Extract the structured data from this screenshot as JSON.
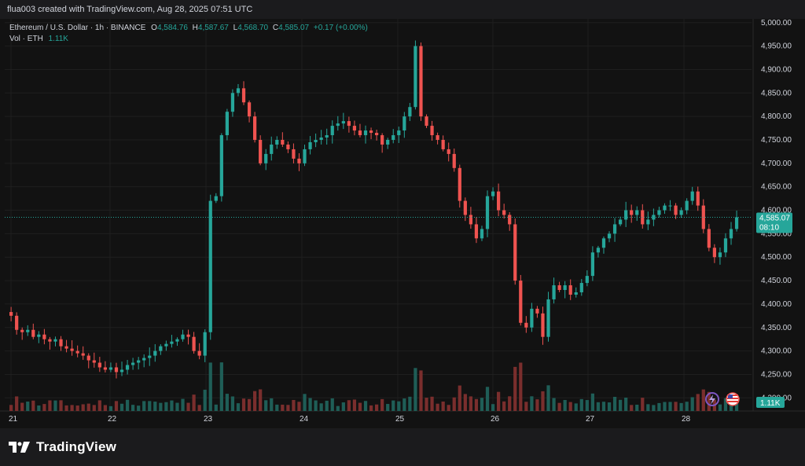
{
  "header": {
    "credit": "flua003 created with TradingView.com, Aug 28, 2025 07:51 UTC"
  },
  "legend": {
    "symbol": "Ethereum / U.S. Dollar · 1h · BINANCE",
    "o_label": "O",
    "o_value": "4,584.76",
    "h_label": "H",
    "h_value": "4,587.67",
    "l_label": "L",
    "l_value": "4,568.70",
    "c_label": "C",
    "c_value": "4,585.07",
    "change": "+0.17 (+0.00%)",
    "vol_label": "Vol · ETH",
    "vol_value": "1.11K"
  },
  "price_tag": {
    "price": "4,585.07",
    "countdown": "08:10"
  },
  "volume_tag": "1.11K",
  "footer": {
    "brand": "TradingView"
  },
  "icons": [
    "lightning-icon",
    "us-flag-icon",
    "tradingview-logo-icon"
  ],
  "colors": {
    "up": "#26a69a",
    "down": "#ef5350",
    "background": "#121212",
    "grid": "#1f1f1f",
    "text": "#d1d4dc"
  },
  "chart_data": {
    "type": "candlestick",
    "interval": "1h",
    "yaxis_ticks": [
      "5,000.00",
      "4,950.00",
      "4,900.00",
      "4,850.00",
      "4,800.00",
      "4,750.00",
      "4,700.00",
      "4,650.00",
      "4,600.00",
      "4,550.00",
      "4,500.00",
      "4,450.00",
      "4,400.00",
      "4,350.00",
      "4,300.00",
      "4,250.00",
      "4,200.00"
    ],
    "ylim": [
      4172,
      5008
    ],
    "xaxis_ticks": [
      "21",
      "22",
      "23",
      "24",
      "25",
      "26",
      "27",
      "28"
    ],
    "last_price": 4585.07,
    "series": [
      {
        "name": "Ethereum / U.S. Dollar",
        "kind": "ohlc",
        "close_path": [
          4375,
          4345,
          4340,
          4345,
          4330,
          4335,
          4325,
          4320,
          4325,
          4310,
          4305,
          4300,
          4295,
          4290,
          4280,
          4275,
          4265,
          4260,
          4265,
          4255,
          4260,
          4270,
          4275,
          4280,
          4285,
          4290,
          4300,
          4310,
          4315,
          4320,
          4325,
          4335,
          4330,
          4300,
          4290,
          4340,
          4620,
          4630,
          4760,
          4810,
          4850,
          4860,
          4830,
          4800,
          4750,
          4700,
          4720,
          4740,
          4750,
          4740,
          4730,
          4710,
          4700,
          4730,
          4745,
          4750,
          4755,
          4760,
          4780,
          4785,
          4790,
          4780,
          4770,
          4760,
          4770,
          4765,
          4760,
          4740,
          4750,
          4760,
          4770,
          4800,
          4820,
          4950,
          4800,
          4780,
          4760,
          4750,
          4730,
          4720,
          4690,
          4620,
          4590,
          4570,
          4540,
          4560,
          4630,
          4640,
          4600,
          4590,
          4570,
          4450,
          4360,
          4350,
          4390,
          4380,
          4330,
          4410,
          4440,
          4430,
          4440,
          4420,
          4425,
          4445,
          4460,
          4510,
          4520,
          4540,
          4550,
          4570,
          4580,
          4600,
          4590,
          4600,
          4570,
          4580,
          4590,
          4600,
          4610,
          4610,
          4590,
          4600,
          4620,
          4640,
          4610,
          4560,
          4520,
          4500,
          4510,
          4540,
          4560,
          4585
        ]
      },
      {
        "name": "Vol · ETH",
        "kind": "volume",
        "approx_peaks_K": [
          20,
          12,
          18
        ]
      }
    ]
  }
}
